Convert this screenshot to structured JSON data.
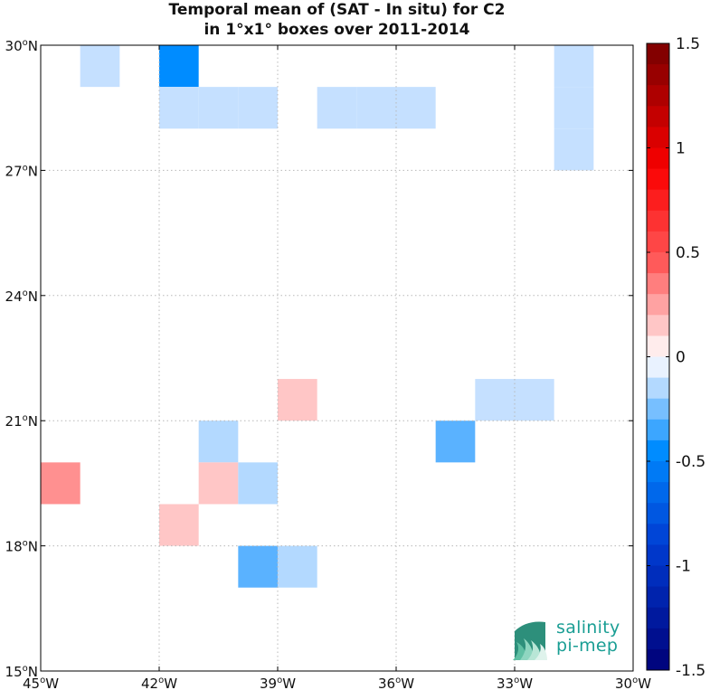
{
  "chart_data": {
    "type": "heatmap",
    "title": "Temporal mean of (SAT - In situ) for C2",
    "subtitle": "in 1°x1° boxes over 2011-2014",
    "xlim": [
      -45,
      -30
    ],
    "ylim": [
      15,
      30
    ],
    "x_ticks": [
      -45,
      -42,
      -39,
      -36,
      -33,
      -30
    ],
    "y_ticks": [
      15,
      18,
      21,
      24,
      27,
      30
    ],
    "x_tick_labels": [
      "45°W",
      "42°W",
      "39°W",
      "36°W",
      "33°W",
      "30°W"
    ],
    "y_tick_labels": [
      "15°N",
      "18°N",
      "21°N",
      "24°N",
      "27°N",
      "30°N"
    ],
    "grid": true,
    "colorbar": {
      "min": -1.5,
      "max": 1.5,
      "levels": 30,
      "tick_values": [
        1.5,
        1,
        0.5,
        0,
        -0.5,
        -1,
        -1.5
      ],
      "tick_labels": [
        "1.5",
        "1",
        "0.5",
        "0",
        "-0.5",
        "-1",
        "-1.5"
      ]
    },
    "cells": [
      {
        "lon": -44,
        "lat": 29,
        "value": -0.12
      },
      {
        "lon": -42,
        "lat": 29,
        "value": -0.45
      },
      {
        "lon": -42,
        "lat": 28,
        "value": -0.12
      },
      {
        "lon": -41,
        "lat": 28,
        "value": -0.12
      },
      {
        "lon": -40,
        "lat": 28,
        "value": -0.12
      },
      {
        "lon": -38,
        "lat": 28,
        "value": -0.12
      },
      {
        "lon": -37,
        "lat": 28,
        "value": -0.12
      },
      {
        "lon": -36,
        "lat": 28,
        "value": -0.12
      },
      {
        "lon": -32,
        "lat": 29,
        "value": -0.12
      },
      {
        "lon": -32,
        "lat": 28,
        "value": -0.12
      },
      {
        "lon": -32,
        "lat": 27,
        "value": -0.12
      },
      {
        "lon": -39,
        "lat": 21,
        "value": 0.15
      },
      {
        "lon": -34,
        "lat": 21,
        "value": -0.12
      },
      {
        "lon": -33,
        "lat": 21,
        "value": -0.12
      },
      {
        "lon": -35,
        "lat": 20,
        "value": -0.3
      },
      {
        "lon": -41,
        "lat": 20,
        "value": -0.15
      },
      {
        "lon": -45,
        "lat": 19,
        "value": 0.3
      },
      {
        "lon": -41,
        "lat": 19,
        "value": 0.15
      },
      {
        "lon": -40,
        "lat": 19,
        "value": -0.15
      },
      {
        "lon": -42,
        "lat": 18,
        "value": 0.15
      },
      {
        "lon": -40,
        "lat": 17,
        "value": -0.3
      },
      {
        "lon": -39,
        "lat": 17,
        "value": -0.15
      }
    ]
  },
  "logo": {
    "line1": "salinity",
    "line2": "pi-mep"
  }
}
